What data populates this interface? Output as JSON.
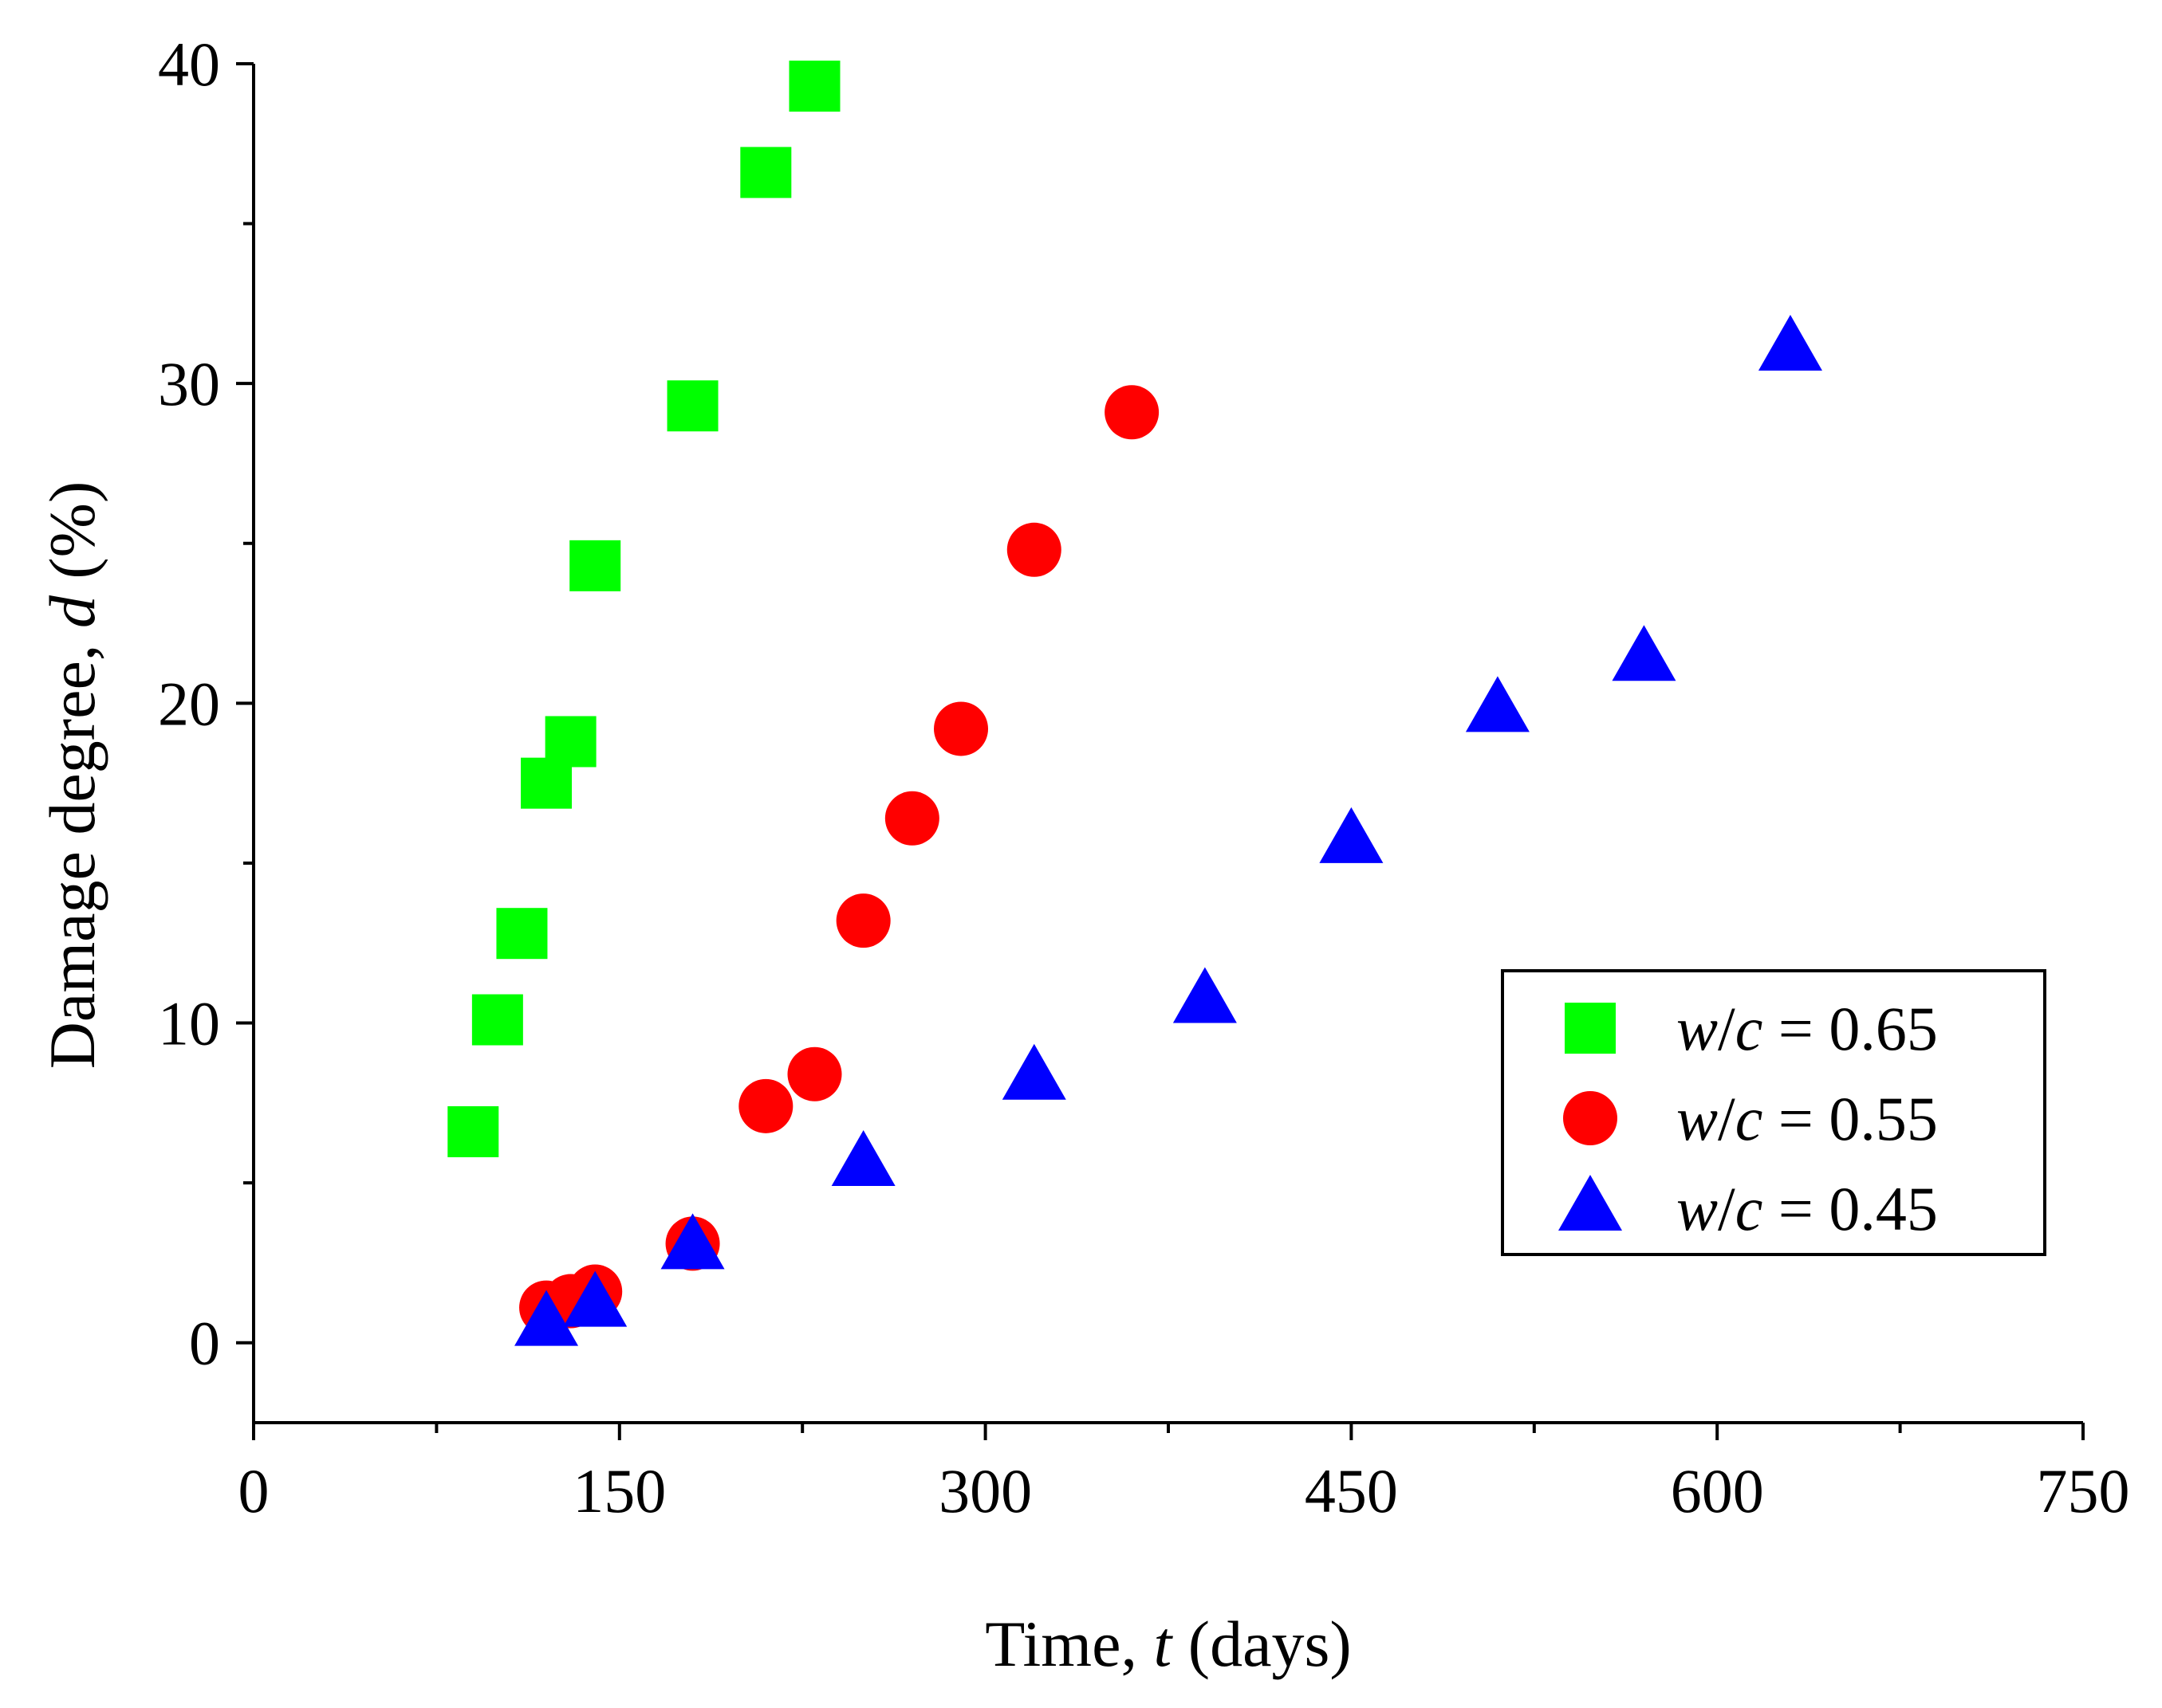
{
  "chart_data": {
    "type": "scatter",
    "title": "",
    "xlabel_parts": {
      "prefix": "Time, ",
      "var": "t",
      "suffix": " (days)"
    },
    "ylabel_parts": {
      "prefix": "Damage degree, ",
      "var": "d",
      "suffix": " (%)"
    },
    "xlim": [
      0,
      750
    ],
    "ylim": [
      -2.5,
      40
    ],
    "x_ticks": [
      0,
      150,
      300,
      450,
      600,
      750
    ],
    "x_tick_labels": [
      "0",
      "150",
      "300",
      "450",
      "600",
      "750"
    ],
    "x_minor_ticks": [
      75,
      225,
      375,
      525,
      675
    ],
    "y_ticks": [
      0,
      10,
      20,
      30,
      40
    ],
    "y_tick_labels": [
      "0",
      "10",
      "20",
      "30",
      "40"
    ],
    "y_minor_ticks": [
      5,
      15,
      25,
      35
    ],
    "legend_position": "right",
    "series": [
      {
        "name": "w/c = 0.65",
        "label_var": "w",
        "label_sep": "/",
        "label_var2": "c",
        "label_value": " = 0.65",
        "marker": "square",
        "color": "#00ff00",
        "x": [
          90,
          100,
          110,
          120,
          130,
          140,
          180,
          210,
          230
        ],
        "y": [
          6.6,
          10.1,
          12.8,
          17.5,
          18.8,
          24.3,
          29.3,
          36.6,
          39.3
        ]
      },
      {
        "name": "w/c = 0.55",
        "label_var": "w",
        "label_sep": "/",
        "label_var2": "c",
        "label_value": " = 0.55",
        "marker": "circle",
        "color": "#ff0000",
        "x": [
          120,
          130,
          140,
          180,
          210,
          230,
          250,
          270,
          290,
          320,
          360
        ],
        "y": [
          1.1,
          1.3,
          1.6,
          3.1,
          7.4,
          8.4,
          13.2,
          16.4,
          19.2,
          24.8,
          29.1
        ]
      },
      {
        "name": "w/c = 0.45",
        "label_var": "w",
        "label_sep": "/",
        "label_var2": "c",
        "label_value": " = 0.45",
        "marker": "triangle",
        "color": "#0000ff",
        "x": [
          120,
          140,
          180,
          250,
          320,
          390,
          450,
          510,
          570,
          630
        ],
        "y": [
          0.6,
          1.2,
          3.0,
          5.6,
          8.3,
          10.7,
          15.7,
          19.8,
          21.4,
          31.1
        ]
      }
    ]
  }
}
